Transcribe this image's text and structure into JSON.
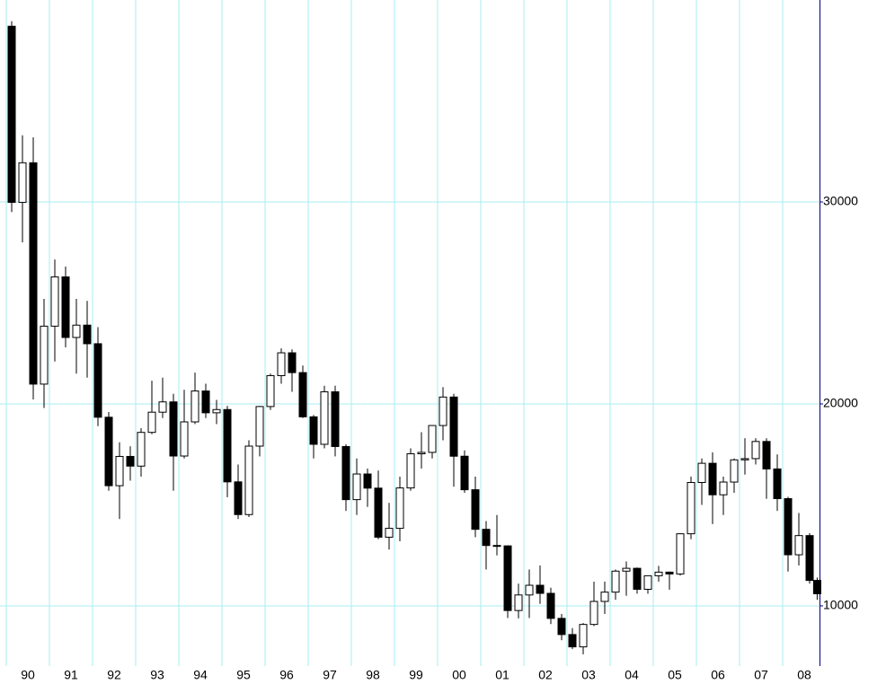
{
  "chart_data": {
    "type": "candlestick",
    "x": [
      1990.125,
      1990.375,
      1990.625,
      1990.875,
      1991.125,
      1991.375,
      1991.625,
      1991.875,
      1992.125,
      1992.375,
      1992.625,
      1992.875,
      1993.125,
      1993.375,
      1993.625,
      1993.875,
      1994.125,
      1994.375,
      1994.625,
      1994.875,
      1995.125,
      1995.375,
      1995.625,
      1995.875,
      1996.125,
      1996.375,
      1996.625,
      1996.875,
      1997.125,
      1997.375,
      1997.625,
      1997.875,
      1998.125,
      1998.375,
      1998.625,
      1998.875,
      1999.125,
      1999.375,
      1999.625,
      1999.875,
      2000.125,
      2000.375,
      2000.625,
      2000.875,
      2001.125,
      2001.375,
      2001.625,
      2001.875,
      2002.125,
      2002.375,
      2002.625,
      2002.875,
      2003.125,
      2003.375,
      2003.625,
      2003.875,
      2004.125,
      2004.375,
      2004.625,
      2004.875,
      2005.125,
      2005.375,
      2005.625,
      2005.875,
      2006.125,
      2006.375,
      2006.625,
      2006.875,
      2007.125,
      2007.375,
      2007.625,
      2007.875,
      2008.125,
      2008.375,
      2008.625,
      2008.8
    ],
    "open": [
      38700,
      29980,
      31940,
      20980,
      23850,
      26290,
      23290,
      23900,
      22980,
      19340,
      15950,
      17400,
      16920,
      18590,
      19590,
      20100,
      17420,
      19110,
      20640,
      19560,
      19720,
      16140,
      14520,
      17910,
      19870,
      21400,
      22530,
      21550,
      19360,
      18000,
      20600,
      17890,
      15260,
      16530,
      15830,
      13400,
      13840,
      15840,
      17530,
      17600,
      18930,
      20340,
      17410,
      15750,
      13790,
      12990,
      12970,
      9770,
      10540,
      11020,
      10620,
      9380,
      8580,
      7970,
      9080,
      10220,
      10680,
      11720,
      11860,
      10820,
      11490,
      11670,
      11580,
      13570,
      16110,
      17060,
      15500,
      16130,
      17230,
      17290,
      18140,
      16780,
      15310,
      12530,
      13480,
      11260
    ],
    "high": [
      38950,
      33300,
      33200,
      25200,
      27150,
      26800,
      25200,
      25100,
      23800,
      19600,
      18100,
      17900,
      18800,
      21150,
      21300,
      20500,
      20700,
      21550,
      21000,
      20200,
      19900,
      17000,
      18200,
      19900,
      21500,
      22750,
      22700,
      21900,
      19450,
      20900,
      20900,
      18000,
      17300,
      16800,
      16700,
      15100,
      16400,
      17800,
      18600,
      18950,
      20830,
      20500,
      17700,
      16400,
      14200,
      14500,
      13000,
      11100,
      11800,
      12000,
      10900,
      9600,
      8900,
      9150,
      11200,
      11200,
      11800,
      12200,
      11900,
      11500,
      11980,
      11700,
      13600,
      16400,
      17300,
      17600,
      16400,
      17300,
      18300,
      18300,
      18300,
      17500,
      15400,
      14600,
      13600,
      11400
    ],
    "low": [
      29500,
      28000,
      20220,
      19800,
      22100,
      22800,
      21500,
      21300,
      18900,
      15700,
      14300,
      16200,
      16400,
      18500,
      19300,
      15700,
      17300,
      19000,
      19300,
      19000,
      15380,
      14300,
      14400,
      17400,
      19700,
      21000,
      20600,
      19300,
      17300,
      17800,
      17400,
      14700,
      14500,
      14900,
      13300,
      12790,
      13200,
      15700,
      16800,
      17300,
      18200,
      15900,
      15600,
      13400,
      11800,
      12500,
      9400,
      9380,
      9400,
      10100,
      9100,
      8300,
      7860,
      7600,
      9000,
      9600,
      10300,
      10500,
      10600,
      10600,
      11200,
      10800,
      11500,
      13300,
      15000,
      14050,
      14500,
      15600,
      16500,
      17000,
      15300,
      14700,
      11700,
      12000,
      11100,
      10300
    ],
    "close": [
      29980,
      31940,
      20980,
      23850,
      26290,
      23290,
      23900,
      22980,
      19340,
      15950,
      17400,
      16920,
      18590,
      19590,
      20100,
      17420,
      19110,
      20640,
      19560,
      19720,
      16140,
      14520,
      17910,
      19870,
      21400,
      22530,
      21550,
      19360,
      18000,
      20600,
      17890,
      15260,
      16530,
      15830,
      13400,
      13840,
      15840,
      17530,
      17600,
      18930,
      20340,
      17410,
      15750,
      13790,
      12990,
      12970,
      9770,
      10540,
      11020,
      10620,
      9380,
      8580,
      7970,
      9080,
      10220,
      10680,
      11720,
      11860,
      10820,
      11490,
      11670,
      11580,
      13570,
      16110,
      17060,
      15500,
      16130,
      17230,
      17290,
      18140,
      16780,
      15310,
      12530,
      13480,
      11260,
      10600
    ],
    "up_color": "#ffffff",
    "down_color": "#000000",
    "line_color": "#000000",
    "xlim": [
      1989.854,
      2008.854
    ],
    "xticks": [
      {
        "value": 1990,
        "label": "90"
      },
      {
        "value": 1991,
        "label": "91"
      },
      {
        "value": 1992,
        "label": "92"
      },
      {
        "value": 1993,
        "label": "93"
      },
      {
        "value": 1994,
        "label": "94"
      },
      {
        "value": 1995,
        "label": "95"
      },
      {
        "value": 1996,
        "label": "96"
      },
      {
        "value": 1997,
        "label": "97"
      },
      {
        "value": 1998,
        "label": "98"
      },
      {
        "value": 1999,
        "label": "99"
      },
      {
        "value": 2000,
        "label": "00"
      },
      {
        "value": 2001,
        "label": "01"
      },
      {
        "value": 2002,
        "label": "02"
      },
      {
        "value": 2003,
        "label": "03"
      },
      {
        "value": 2004,
        "label": "04"
      },
      {
        "value": 2005,
        "label": "05"
      },
      {
        "value": 2006,
        "label": "06"
      },
      {
        "value": 2007,
        "label": "07"
      },
      {
        "value": 2008,
        "label": "08"
      }
    ],
    "ylim": [
      7020,
      40000
    ],
    "yticks": [
      10000,
      20000,
      30000
    ],
    "grid": true,
    "grid_color": "#a8eef2"
  }
}
